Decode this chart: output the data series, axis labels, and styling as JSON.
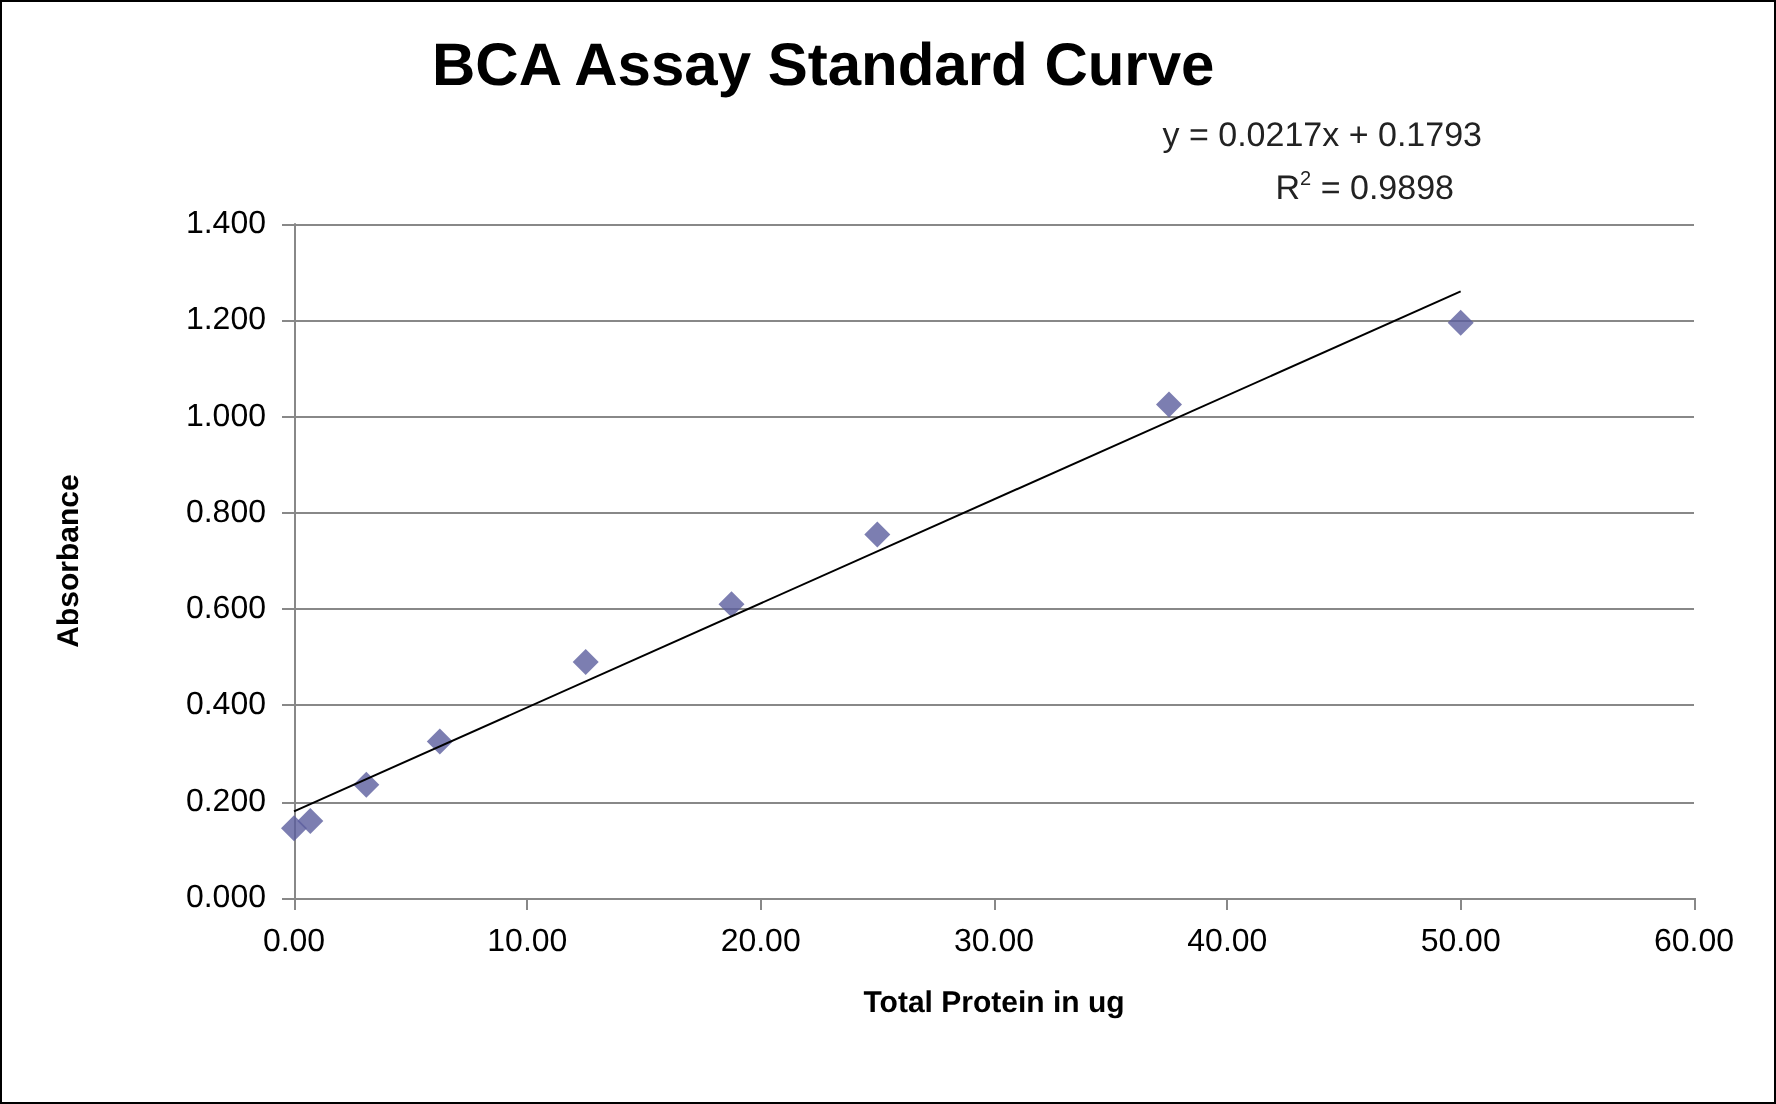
{
  "chart_data": {
    "type": "scatter",
    "title": "BCA Assay Standard Curve",
    "xlabel": "Total Protein in ug",
    "ylabel": "Absorbance",
    "series": [
      {
        "color": "#5b5e9e",
        "marker": "diamond",
        "x": [
          0,
          0.7,
          3.1,
          6.25,
          12.5,
          18.75,
          25,
          37.5,
          50
        ],
        "values": [
          0.145,
          0.16,
          0.235,
          0.325,
          0.49,
          0.61,
          0.755,
          1.025,
          1.195
        ]
      },
      {
        "type": "line",
        "color": "#000000",
        "marker": "none",
        "x": [
          0,
          50
        ],
        "values": [
          0.18,
          1.26
        ]
      }
    ],
    "annotations": [
      "y = 0.0217x + 0.1793",
      "R$^{2}$ = 0.9898"
    ],
    "xlim": [
      0,
      60
    ],
    "xticks": [
      {
        "value": 0,
        "label": "0.00"
      },
      {
        "value": 10,
        "label": "10.00"
      },
      {
        "value": 20,
        "label": "20.00"
      },
      {
        "value": 30,
        "label": "30.00"
      },
      {
        "value": 40,
        "label": "40.00"
      },
      {
        "value": 50,
        "label": "50.00"
      },
      {
        "value": 60,
        "label": "60.00"
      }
    ],
    "ylim": [
      0,
      1.4
    ],
    "yticks": [
      {
        "value": 0,
        "label": "0.000"
      },
      {
        "value": 0.2,
        "label": "0.200"
      },
      {
        "value": 0.4,
        "label": "0.400"
      },
      {
        "value": 0.6,
        "label": "0.600"
      },
      {
        "value": 0.8,
        "label": "0.800"
      },
      {
        "value": 1,
        "label": "1.000"
      },
      {
        "value": 1.2,
        "label": "1.200"
      },
      {
        "value": 1.4,
        "label": "1.400"
      }
    ],
    "grid": "y"
  }
}
